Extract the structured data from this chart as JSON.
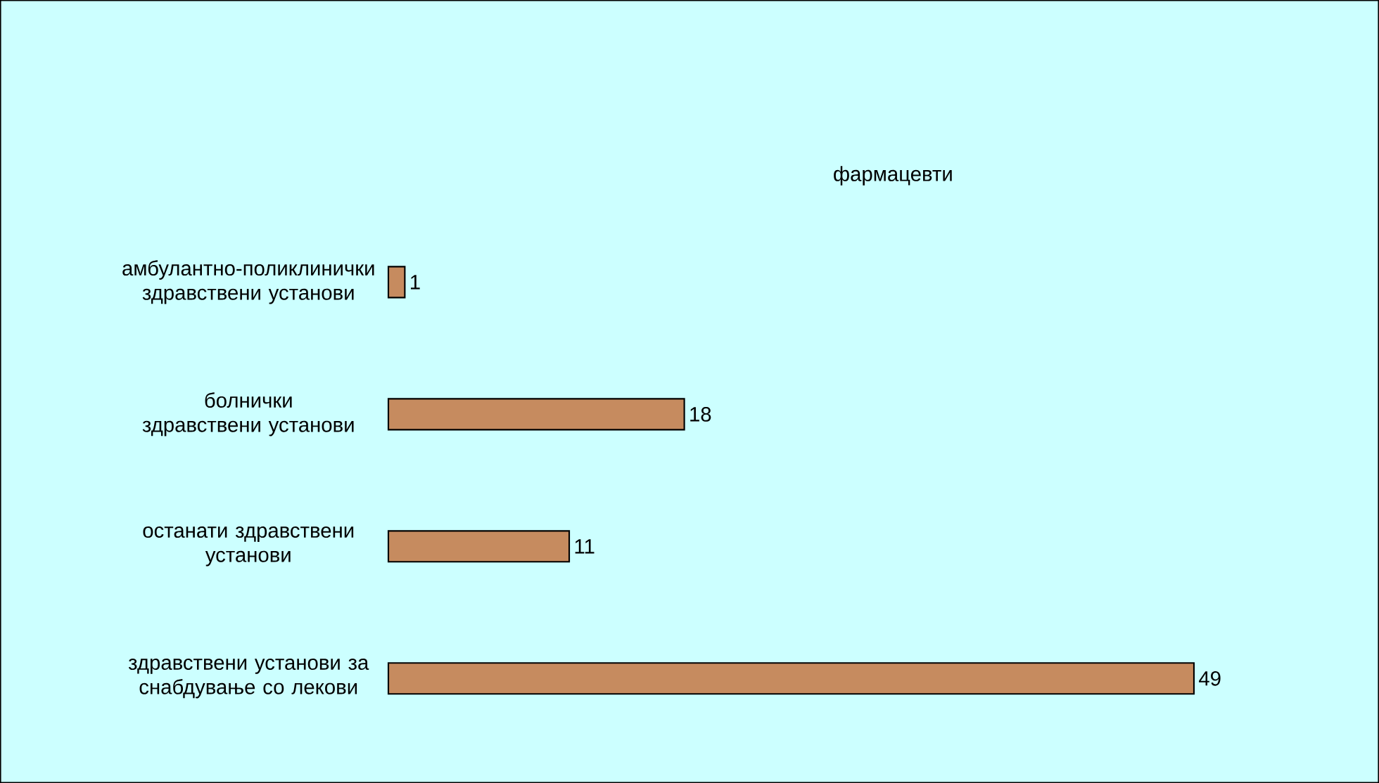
{
  "chart_data": {
    "type": "bar",
    "orientation": "horizontal",
    "title": "фармацевти",
    "categories": [
      "амбулантно-поликлинички здравствени установи",
      "болнички здравствени установи",
      "останати здравствени установи",
      "здравствени установи за снабдување со лекови"
    ],
    "values": [
      1,
      18,
      11,
      49
    ],
    "color": "#c68b5f",
    "data_labels": true
  }
}
